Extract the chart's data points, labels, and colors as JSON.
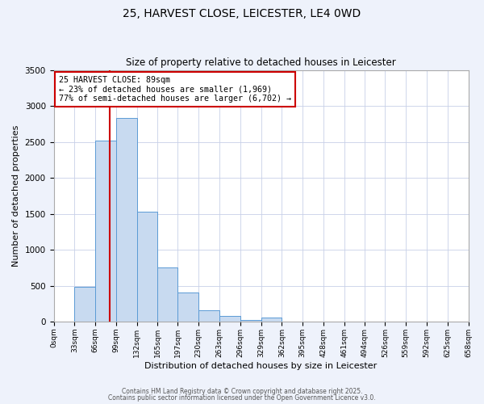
{
  "title1": "25, HARVEST CLOSE, LEICESTER, LE4 0WD",
  "title2": "Size of property relative to detached houses in Leicester",
  "xlabel": "Distribution of detached houses by size in Leicester",
  "ylabel": "Number of detached properties",
  "bin_edges": [
    0,
    33,
    66,
    99,
    132,
    165,
    197,
    230,
    263,
    296,
    329,
    362,
    395,
    428,
    461,
    494,
    526,
    559,
    592,
    625,
    658
  ],
  "bin_labels": [
    "0sqm",
    "33sqm",
    "66sqm",
    "99sqm",
    "132sqm",
    "165sqm",
    "197sqm",
    "230sqm",
    "263sqm",
    "296sqm",
    "329sqm",
    "362sqm",
    "395sqm",
    "428sqm",
    "461sqm",
    "494sqm",
    "526sqm",
    "559sqm",
    "592sqm",
    "625sqm",
    "658sqm"
  ],
  "bar_heights": [
    0,
    480,
    2520,
    2840,
    1530,
    750,
    400,
    155,
    75,
    20,
    55,
    0,
    0,
    0,
    0,
    0,
    0,
    0,
    0,
    0
  ],
  "bar_color": "#c8daf0",
  "bar_edge_color": "#5b9bd5",
  "ylim": [
    0,
    3500
  ],
  "yticks": [
    0,
    500,
    1000,
    1500,
    2000,
    2500,
    3000,
    3500
  ],
  "property_line_x": 89,
  "property_line_color": "#cc0000",
  "annotation_title": "25 HARVEST CLOSE: 89sqm",
  "annotation_line1": "← 23% of detached houses are smaller (1,969)",
  "annotation_line2": "77% of semi-detached houses are larger (6,702) →",
  "annotation_box_color": "#ffffff",
  "annotation_box_edge_color": "#cc0000",
  "footer1": "Contains HM Land Registry data © Crown copyright and database right 2025.",
  "footer2": "Contains public sector information licensed under the Open Government Licence v3.0.",
  "bg_color": "#eef2fb",
  "plot_bg_color": "#ffffff",
  "grid_color": "#c8d0e8"
}
